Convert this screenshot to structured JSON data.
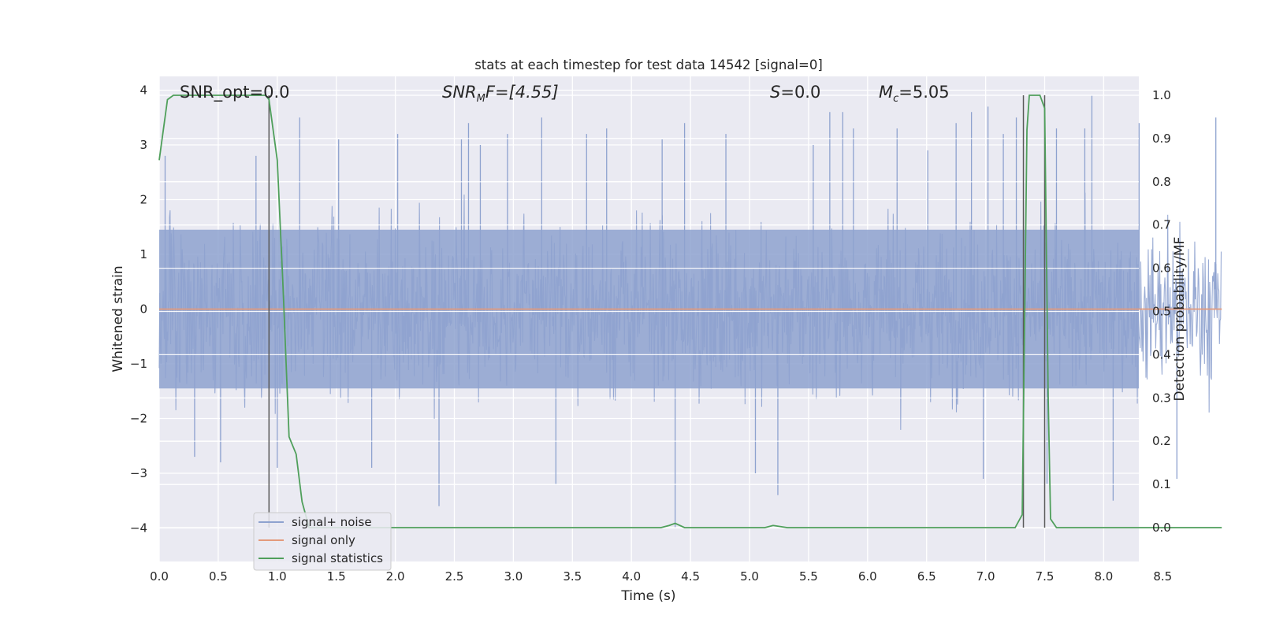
{
  "chart_data": {
    "type": "line",
    "title": "stats at each timestep for test data 14542 [signal=0]",
    "xlabel": "Time (s)",
    "ylabel": "Whitened strain",
    "y2label": "Detection probability/MF",
    "xlim": [
      0.0,
      9.0
    ],
    "ylim": [
      -4.4,
      4.3
    ],
    "y2lim": [
      -0.05,
      1.05
    ],
    "xticks": [
      "0.0",
      "0.5",
      "1.0",
      "1.5",
      "2.0",
      "2.5",
      "3.0",
      "3.5",
      "4.0",
      "4.5",
      "5.0",
      "5.5",
      "6.0",
      "6.5",
      "7.0",
      "7.5",
      "8.0",
      "8.5"
    ],
    "yticks": [
      "4",
      "3",
      "2",
      "1",
      "0",
      "−1",
      "−2",
      "−3",
      "−4"
    ],
    "y2ticks": [
      "1.0",
      "0.9",
      "0.8",
      "0.7",
      "0.6",
      "0.5",
      "0.4",
      "0.3",
      "0.2",
      "0.1",
      "0.0"
    ],
    "grid": true,
    "legend_position": "lower-left",
    "colors": {
      "noise": "#8ea2cf",
      "signal": "#e39a7c",
      "stats": "#4f9f5b",
      "vline": "#5a5a5a",
      "background": "#eaeaf2"
    },
    "annotations": {
      "snr_opt": "SNR_opt=0.0",
      "snr_mf_main": "SNR",
      "snr_mf_sub": "M",
      "snr_mf_rest": "F=[4.55]",
      "s_main": "S",
      "s_rest": "=0.0",
      "mc_main": "M",
      "mc_sub": "c",
      "mc_rest": "=5.05"
    },
    "series": [
      {
        "name": "signal+ noise",
        "type": "noise",
        "description_values": "dense whitened strain samples, mostly within ±2, peaks near ±3.6",
        "peak_spikes": [
          [
            0.05,
            2.8
          ],
          [
            0.3,
            -2.7
          ],
          [
            0.52,
            -2.8
          ],
          [
            0.82,
            2.8
          ],
          [
            1.0,
            -2.9
          ],
          [
            1.19,
            3.5
          ],
          [
            1.52,
            3.1
          ],
          [
            1.8,
            -2.9
          ],
          [
            2.02,
            3.2
          ],
          [
            2.37,
            -3.6
          ],
          [
            2.56,
            3.1
          ],
          [
            2.62,
            3.4
          ],
          [
            2.72,
            3.0
          ],
          [
            2.95,
            3.2
          ],
          [
            3.24,
            3.5
          ],
          [
            3.36,
            -3.2
          ],
          [
            3.62,
            3.2
          ],
          [
            3.79,
            3.3
          ],
          [
            4.26,
            3.1
          ],
          [
            4.37,
            -4.0
          ],
          [
            4.45,
            3.4
          ],
          [
            4.8,
            3.2
          ],
          [
            5.05,
            -3.0
          ],
          [
            5.24,
            -3.4
          ],
          [
            5.54,
            3.0
          ],
          [
            5.68,
            3.6
          ],
          [
            5.79,
            3.6
          ],
          [
            5.88,
            3.3
          ],
          [
            6.25,
            3.3
          ],
          [
            6.51,
            2.9
          ],
          [
            6.75,
            3.4
          ],
          [
            6.88,
            3.6
          ],
          [
            6.98,
            -3.1
          ],
          [
            7.02,
            3.7
          ],
          [
            7.15,
            3.2
          ],
          [
            7.26,
            3.5
          ],
          [
            7.52,
            -3.2
          ],
          [
            7.6,
            3.3
          ],
          [
            7.84,
            3.3
          ],
          [
            7.9,
            3.9
          ],
          [
            8.08,
            -3.5
          ],
          [
            8.3,
            3.4
          ],
          [
            8.62,
            -3.1
          ],
          [
            8.95,
            3.5
          ]
        ]
      },
      {
        "name": "signal only",
        "type": "line",
        "x": [
          0.0,
          9.0
        ],
        "y": [
          0.0,
          0.0
        ]
      },
      {
        "name": "signal statistics",
        "type": "line",
        "axis": "right",
        "x": [
          0.0,
          0.07,
          0.12,
          0.3,
          0.6,
          0.9,
          0.93,
          1.0,
          1.05,
          1.1,
          1.16,
          1.21,
          1.27,
          1.4,
          2.0,
          3.0,
          4.0,
          4.25,
          4.32,
          4.37,
          4.45,
          4.5,
          5.0,
          5.13,
          5.2,
          5.32,
          5.5,
          6.0,
          7.0,
          7.25,
          7.31,
          7.35,
          7.37,
          7.41,
          7.46,
          7.5,
          7.53,
          7.55,
          7.6,
          7.75,
          8.5,
          9.0
        ],
        "y": [
          0.85,
          0.99,
          1.0,
          1.0,
          1.0,
          1.0,
          0.99,
          0.85,
          0.55,
          0.21,
          0.17,
          0.06,
          0.0,
          0.0,
          0.0,
          0.0,
          0.0,
          0.0,
          0.005,
          0.01,
          0.0,
          0.0,
          0.0,
          0.0,
          0.005,
          0.0,
          0.0,
          0.0,
          0.0,
          0.0,
          0.03,
          0.92,
          1.0,
          1.0,
          1.0,
          0.97,
          0.3,
          0.02,
          0.0,
          0.0,
          0.0,
          0.0
        ]
      }
    ],
    "vertical_lines_x": [
      0.93,
      7.32,
      7.5
    ]
  }
}
